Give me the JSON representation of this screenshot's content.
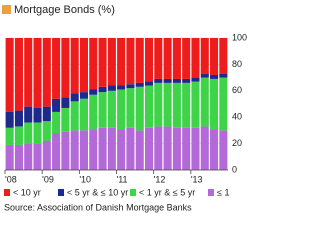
{
  "chart_data": {
    "type": "stacked-bar",
    "title": "Mortgage Bonds (%)",
    "categories": [
      "'08",
      null,
      null,
      null,
      "'09",
      null,
      null,
      null,
      "'10",
      null,
      null,
      null,
      "'11",
      null,
      null,
      null,
      "'12",
      null,
      null,
      null,
      "'13",
      null,
      null,
      null
    ],
    "series": [
      {
        "name": "≤ 1",
        "color": "#b36ad8",
        "values": [
          19,
          19,
          20,
          20,
          22,
          28,
          29,
          30,
          30,
          31,
          32,
          32,
          31,
          32,
          30,
          32,
          33,
          33,
          32,
          32,
          32,
          33,
          31,
          30
        ]
      },
      {
        "name": "< 1 yr & ≤ 5 yr",
        "color": "#3fd34a",
        "values": [
          13,
          14,
          16,
          16,
          15,
          16,
          18,
          22,
          24,
          26,
          27,
          28,
          30,
          30,
          33,
          32,
          33,
          33,
          34,
          34,
          35,
          37,
          38,
          40
        ]
      },
      {
        "name": "< 5 yr & ≤ 10 yr",
        "color": "#1d2a8c",
        "values": [
          12,
          12,
          12,
          11,
          11,
          10,
          8,
          6,
          5,
          4,
          4,
          4,
          3,
          3,
          3,
          3,
          3,
          3,
          3,
          3,
          3,
          3,
          3,
          3
        ]
      },
      {
        "name": "< 10 yr",
        "color": "#ee1c1c",
        "values": [
          56,
          55,
          52,
          53,
          52,
          46,
          45,
          42,
          41,
          39,
          37,
          36,
          36,
          35,
          34,
          33,
          31,
          31,
          31,
          31,
          30,
          27,
          28,
          27
        ]
      }
    ],
    "legend_order": [
      3,
      2,
      1,
      0
    ],
    "ylim": [
      0,
      100
    ],
    "yticks": [
      0,
      20,
      40,
      60,
      80,
      100
    ],
    "grid": true,
    "source": "Source: Association of Danish Mortgage Banks"
  }
}
